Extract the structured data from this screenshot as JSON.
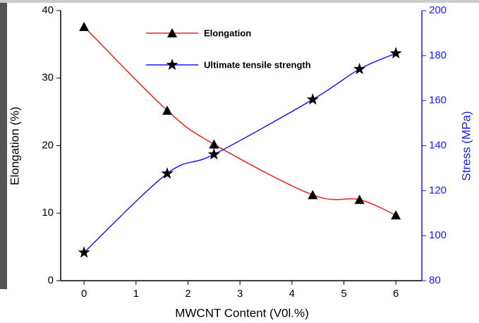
{
  "chart_data": {
    "type": "line",
    "x_label": "MWCNT Content (V0l.%)",
    "y_label": "Elongation (%)",
    "y2_label": "Stress (MPa)",
    "xlim": [
      -0.45,
      6.5
    ],
    "xticks": [
      0,
      1,
      2,
      3,
      4,
      5,
      6
    ],
    "ylim": [
      0,
      40
    ],
    "yticks": [
      0,
      10,
      20,
      30,
      40
    ],
    "y2lim": [
      80,
      200
    ],
    "y2ticks": [
      80,
      100,
      120,
      140,
      160,
      180,
      200
    ],
    "y2_color": "#1a1aff",
    "series": [
      {
        "name": "Elongation",
        "color": "#ee2222",
        "marker": "triangle",
        "x": [
          0,
          1.6,
          2.5,
          4.4,
          5.3,
          6
        ],
        "values": [
          37.6,
          25.2,
          20.2,
          12.7,
          12.0,
          9.7
        ]
      },
      {
        "name": "Ultimate tensile strength",
        "color": "#1a1aff",
        "marker": "star",
        "axis": "y2",
        "x": [
          0,
          1.6,
          2.5,
          4.4,
          5.3,
          6
        ],
        "values": [
          92.5,
          127.6,
          136.1,
          160.5,
          174,
          181
        ]
      }
    ]
  }
}
